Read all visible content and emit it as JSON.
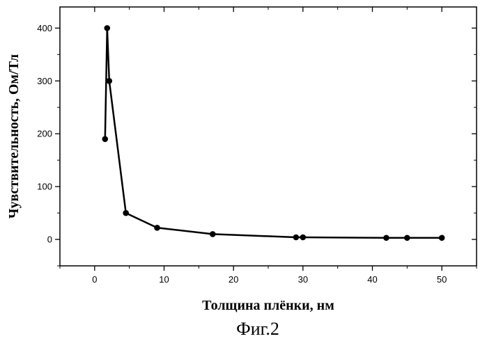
{
  "chart_data": {
    "type": "line",
    "title": "",
    "xlabel": "Толщина плёнки, нм",
    "ylabel": "Чувствительность, Ом/Тл",
    "xlim": [
      -5,
      55
    ],
    "ylim": [
      -50,
      440
    ],
    "x_ticks": [
      0,
      10,
      20,
      30,
      40,
      50
    ],
    "y_ticks": [
      0,
      100,
      200,
      300,
      400
    ],
    "grid": false,
    "legend": "none",
    "series": [
      {
        "x": [
          1.5,
          1.8,
          2.1,
          4.5,
          9,
          17,
          29,
          30,
          42,
          45,
          50
        ],
        "y": [
          190,
          400,
          300,
          50,
          22,
          10,
          4,
          4,
          3,
          3,
          3
        ]
      }
    ],
    "caption": "Фиг.2",
    "line_color": "#000000",
    "marker_color": "#000000"
  }
}
